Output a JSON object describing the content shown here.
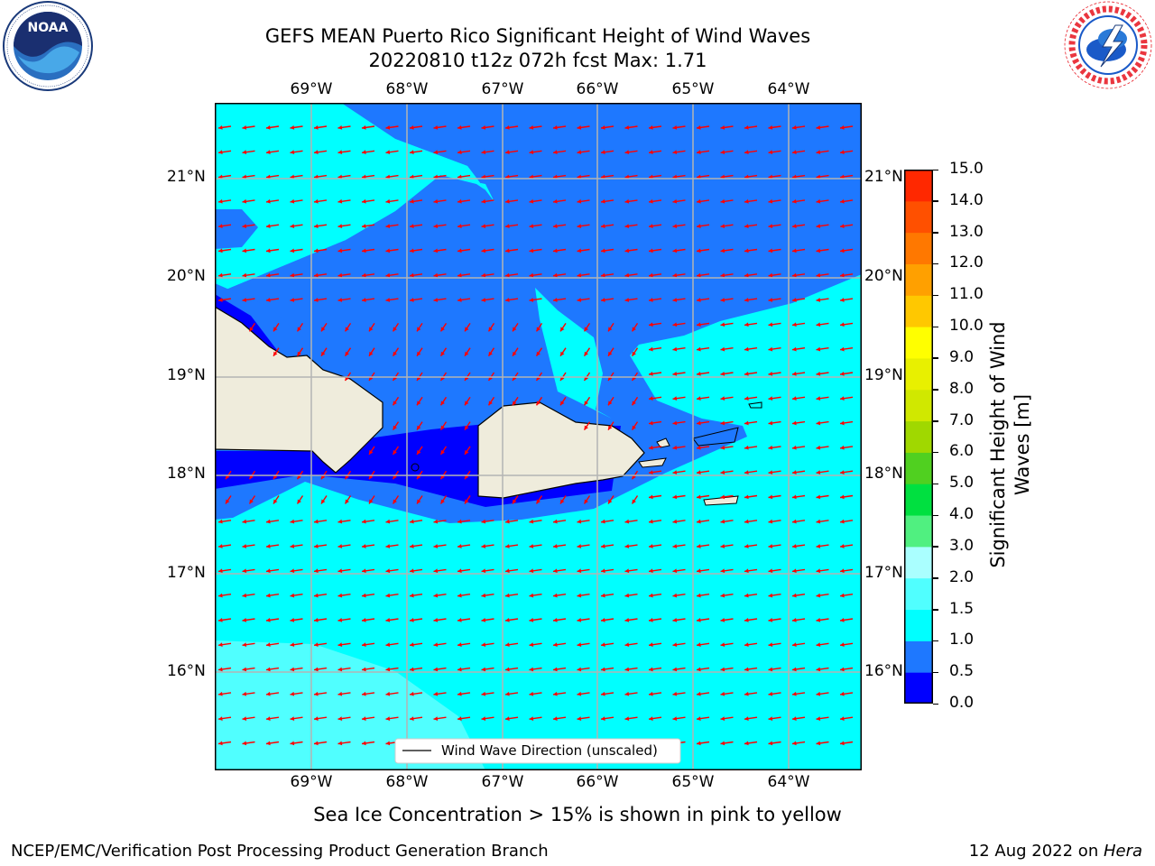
{
  "title": {
    "line1": "GEFS MEAN Puerto Rico Significant Height of Wind Waves",
    "line2": "20220810 t12z 072h fcst   Max: 1.71"
  },
  "logos": {
    "noaa": {
      "text": "NOAA",
      "ring_text": "NATIONAL OCEANIC AND ATMOSPHERIC ADMINISTRATION · U.S. DEPARTMENT OF COMMERCE"
    },
    "nws": {
      "ring_text": "NATIONAL WEATHER SERVICE"
    }
  },
  "map": {
    "lon_labels": [
      "69°W",
      "68°W",
      "67°W",
      "66°W",
      "65°W",
      "64°W"
    ],
    "lat_labels": [
      "21°N",
      "20°N",
      "19°N",
      "18°N",
      "17°N",
      "16°N"
    ],
    "legend_label": "Wind Wave Direction (unscaled)",
    "arrow_direction": "westward",
    "colors": {
      "land": "#efecdc",
      "band_0_0.5": "#0000ff",
      "band_0.5_1.0": "#1e78ff",
      "band_1.0_1.5": "#00ffff",
      "band_1.5_2.0": "#50ffff",
      "arrow": "#ff0000",
      "grid": "#b4b4b4"
    }
  },
  "colorbar": {
    "title": "Significant Height of Wind Waves [m]",
    "title_line1": "Significant Height of Wind",
    "title_line2": "Waves [m]",
    "ticks": [
      "0.0",
      "0.5",
      "1.0",
      "1.5",
      "2.0",
      "3.0",
      "4.0",
      "5.0",
      "6.0",
      "7.0",
      "8.0",
      "9.0",
      "10.0",
      "11.0",
      "12.0",
      "13.0",
      "14.0",
      "15.0"
    ],
    "colors": [
      "#0000ff",
      "#1e78ff",
      "#00ffff",
      "#50ffff",
      "#aaffff",
      "#50f080",
      "#00e040",
      "#50d020",
      "#a0d800",
      "#d0e800",
      "#e8f000",
      "#ffff00",
      "#ffc800",
      "#ffa000",
      "#ff7800",
      "#ff5000",
      "#ff2800",
      "#ff0000"
    ]
  },
  "footer": {
    "sea_ice": "Sea Ice Concentration > 15% is shown in pink to yellow",
    "branch": "NCEP/EMC/Verification Post Processing Product Generation Branch",
    "date": "12 Aug 2022 on ",
    "host": "Hera"
  }
}
